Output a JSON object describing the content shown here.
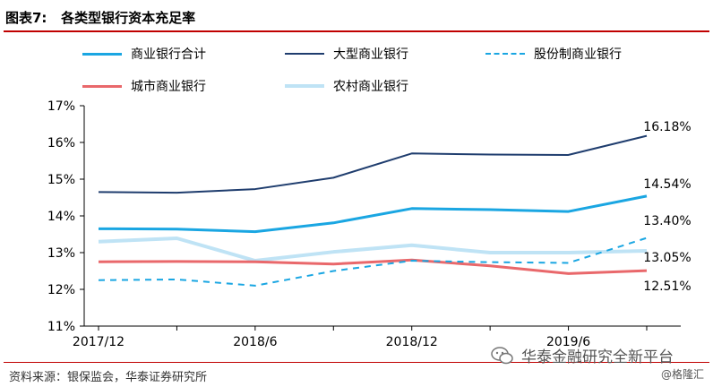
{
  "header": {
    "title": "图表7:   各类型银行资本充足率"
  },
  "colors": {
    "rule": "#c00000",
    "commercial_total": "#1aa6e2",
    "large": "#1f3d6e",
    "joint_stock": "#1aa6e2",
    "city": "#e9686b",
    "rural": "#bfe3f5"
  },
  "chart_data": {
    "type": "line",
    "title": "各类型银行资本充足率",
    "xlabel": "",
    "ylabel": "",
    "x": [
      "2017/12",
      "2018/3",
      "2018/6",
      "2018/9",
      "2018/12",
      "2019/3",
      "2019/6",
      "2019/9"
    ],
    "x_tick_labels": [
      "2017/12",
      "2018/6",
      "2018/12",
      "2019/6"
    ],
    "y_tick_labels": [
      "11%",
      "12%",
      "13%",
      "14%",
      "15%",
      "16%",
      "17%"
    ],
    "ylim": [
      11,
      17
    ],
    "grid": false,
    "series": [
      {
        "name": "商业银行合计",
        "style": "solid",
        "color": "#1aa6e2",
        "width": 3,
        "values": [
          13.65,
          13.64,
          13.57,
          13.81,
          14.2,
          14.17,
          14.12,
          14.54
        ],
        "end_label": "14.54%"
      },
      {
        "name": "大型商业银行",
        "style": "solid",
        "color": "#1f3d6e",
        "width": 2,
        "values": [
          14.65,
          14.63,
          14.73,
          15.04,
          15.7,
          15.67,
          15.66,
          16.18
        ],
        "end_label": "16.18%"
      },
      {
        "name": "股份制商业银行",
        "style": "dashed",
        "color": "#1aa6e2",
        "width": 2,
        "values": [
          12.25,
          12.27,
          12.1,
          12.5,
          12.78,
          12.74,
          12.72,
          13.4
        ],
        "end_label": "13.40%"
      },
      {
        "name": "城市商业银行",
        "style": "solid",
        "color": "#e9686b",
        "width": 3,
        "values": [
          12.75,
          12.76,
          12.75,
          12.69,
          12.8,
          12.64,
          12.43,
          12.51
        ],
        "end_label": "12.51%"
      },
      {
        "name": "农村商业银行",
        "style": "solid",
        "color": "#bfe3f5",
        "width": 4,
        "values": [
          13.3,
          13.39,
          12.78,
          13.02,
          13.2,
          13.0,
          13.0,
          13.05
        ],
        "end_label": "13.05%"
      }
    ]
  },
  "source": {
    "text": "资料来源：银保监会，华泰证券研究所"
  },
  "watermark": {
    "text": "华泰金融研究全新平台",
    "handle": "@格隆汇"
  }
}
